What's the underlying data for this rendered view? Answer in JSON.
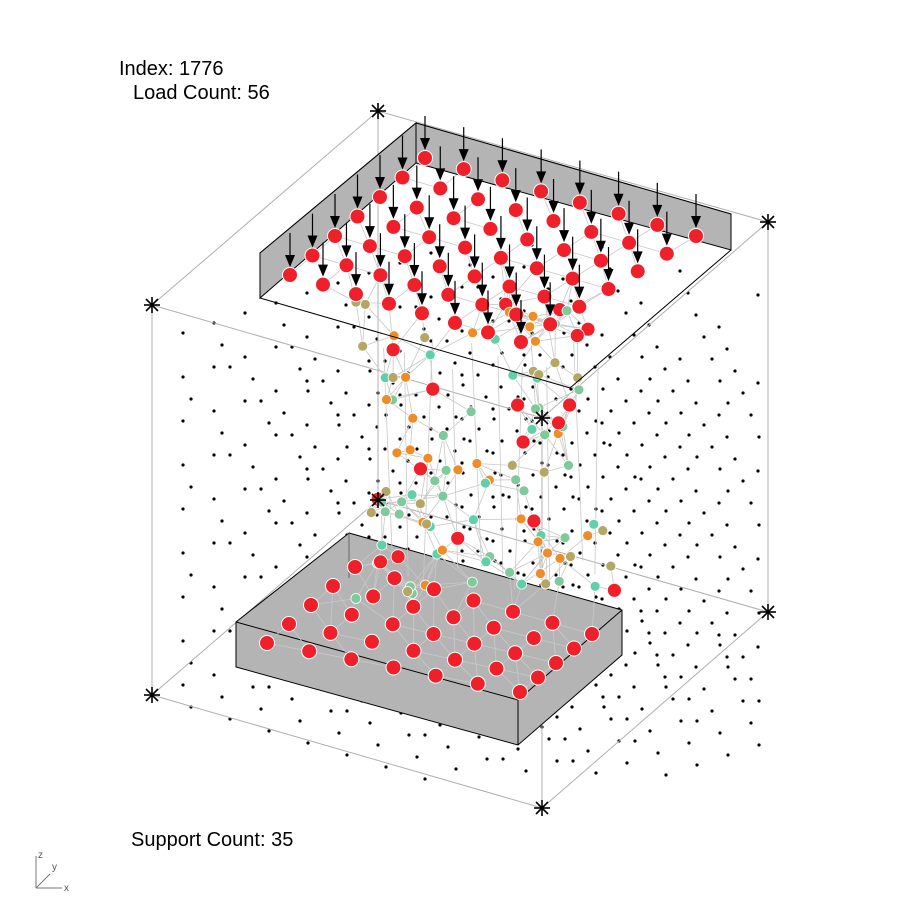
{
  "labels": {
    "index_caption": "Index:",
    "index_value": "1776",
    "load_caption": "Load Count:",
    "load_value": "56",
    "support_caption": "Support Count:",
    "support_value": "35"
  },
  "axis_triad": {
    "z": "z",
    "y": "y",
    "x": "x"
  },
  "structure": {
    "load_grid": {
      "rows": 7,
      "cols": 8
    },
    "support_grid": {
      "rows": 5,
      "cols": 7
    }
  },
  "colors": {
    "load_node": "#f0202a",
    "support_node": "#f0202a",
    "node_orange": "#ef8c2a",
    "node_green": "#7fc99a",
    "node_olive": "#b4a766",
    "node_teal": "#5fd0a8",
    "plate_fill": "#b4b4b4",
    "truss_line": "#c8c8c8",
    "box_line": "#b0b0b0",
    "grid_dot": "#000000",
    "arrow": "#000000"
  }
}
